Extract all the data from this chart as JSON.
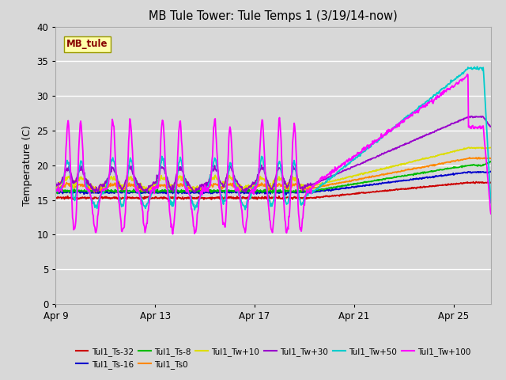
{
  "title": "MB Tule Tower: Tule Temps 1 (3/19/14-now)",
  "ylabel": "Temperature (C)",
  "xlim": [
    0,
    17.5
  ],
  "ylim": [
    0,
    40
  ],
  "yticks": [
    0,
    5,
    10,
    15,
    20,
    25,
    30,
    35,
    40
  ],
  "xtick_labels": [
    "Apr 9",
    "Apr 13",
    "Apr 17",
    "Apr 21",
    "Apr 25"
  ],
  "xtick_positions": [
    0,
    4,
    8,
    12,
    16
  ],
  "bg_color": "#d8d8d8",
  "watermark": "MB_tule",
  "watermark_bg": "#ffffaa",
  "watermark_fg": "#880000",
  "series_colors": {
    "red": "#cc0000",
    "blue": "#0000cc",
    "green": "#00bb00",
    "orange": "#ff8800",
    "yellow": "#dddd00",
    "purple": "#9900cc",
    "cyan": "#00cccc",
    "magenta": "#ff00ff"
  },
  "series_labels": [
    "Tul1_Ts-32",
    "Tul1_Ts-16",
    "Tul1_Ts-8",
    "Tul1_Ts0",
    "Tul1_Tw+10",
    "Tul1_Tw+30",
    "Tul1_Tw+50",
    "Tul1_Tw+100"
  ],
  "transition_day": 10.3,
  "spike_days": [
    0.5,
    1.0,
    2.3,
    3.0,
    4.3,
    5.0,
    6.4,
    7.0,
    8.3,
    9.0,
    9.6
  ],
  "right_end_day": 16.6,
  "drop_end_day": 17.2
}
